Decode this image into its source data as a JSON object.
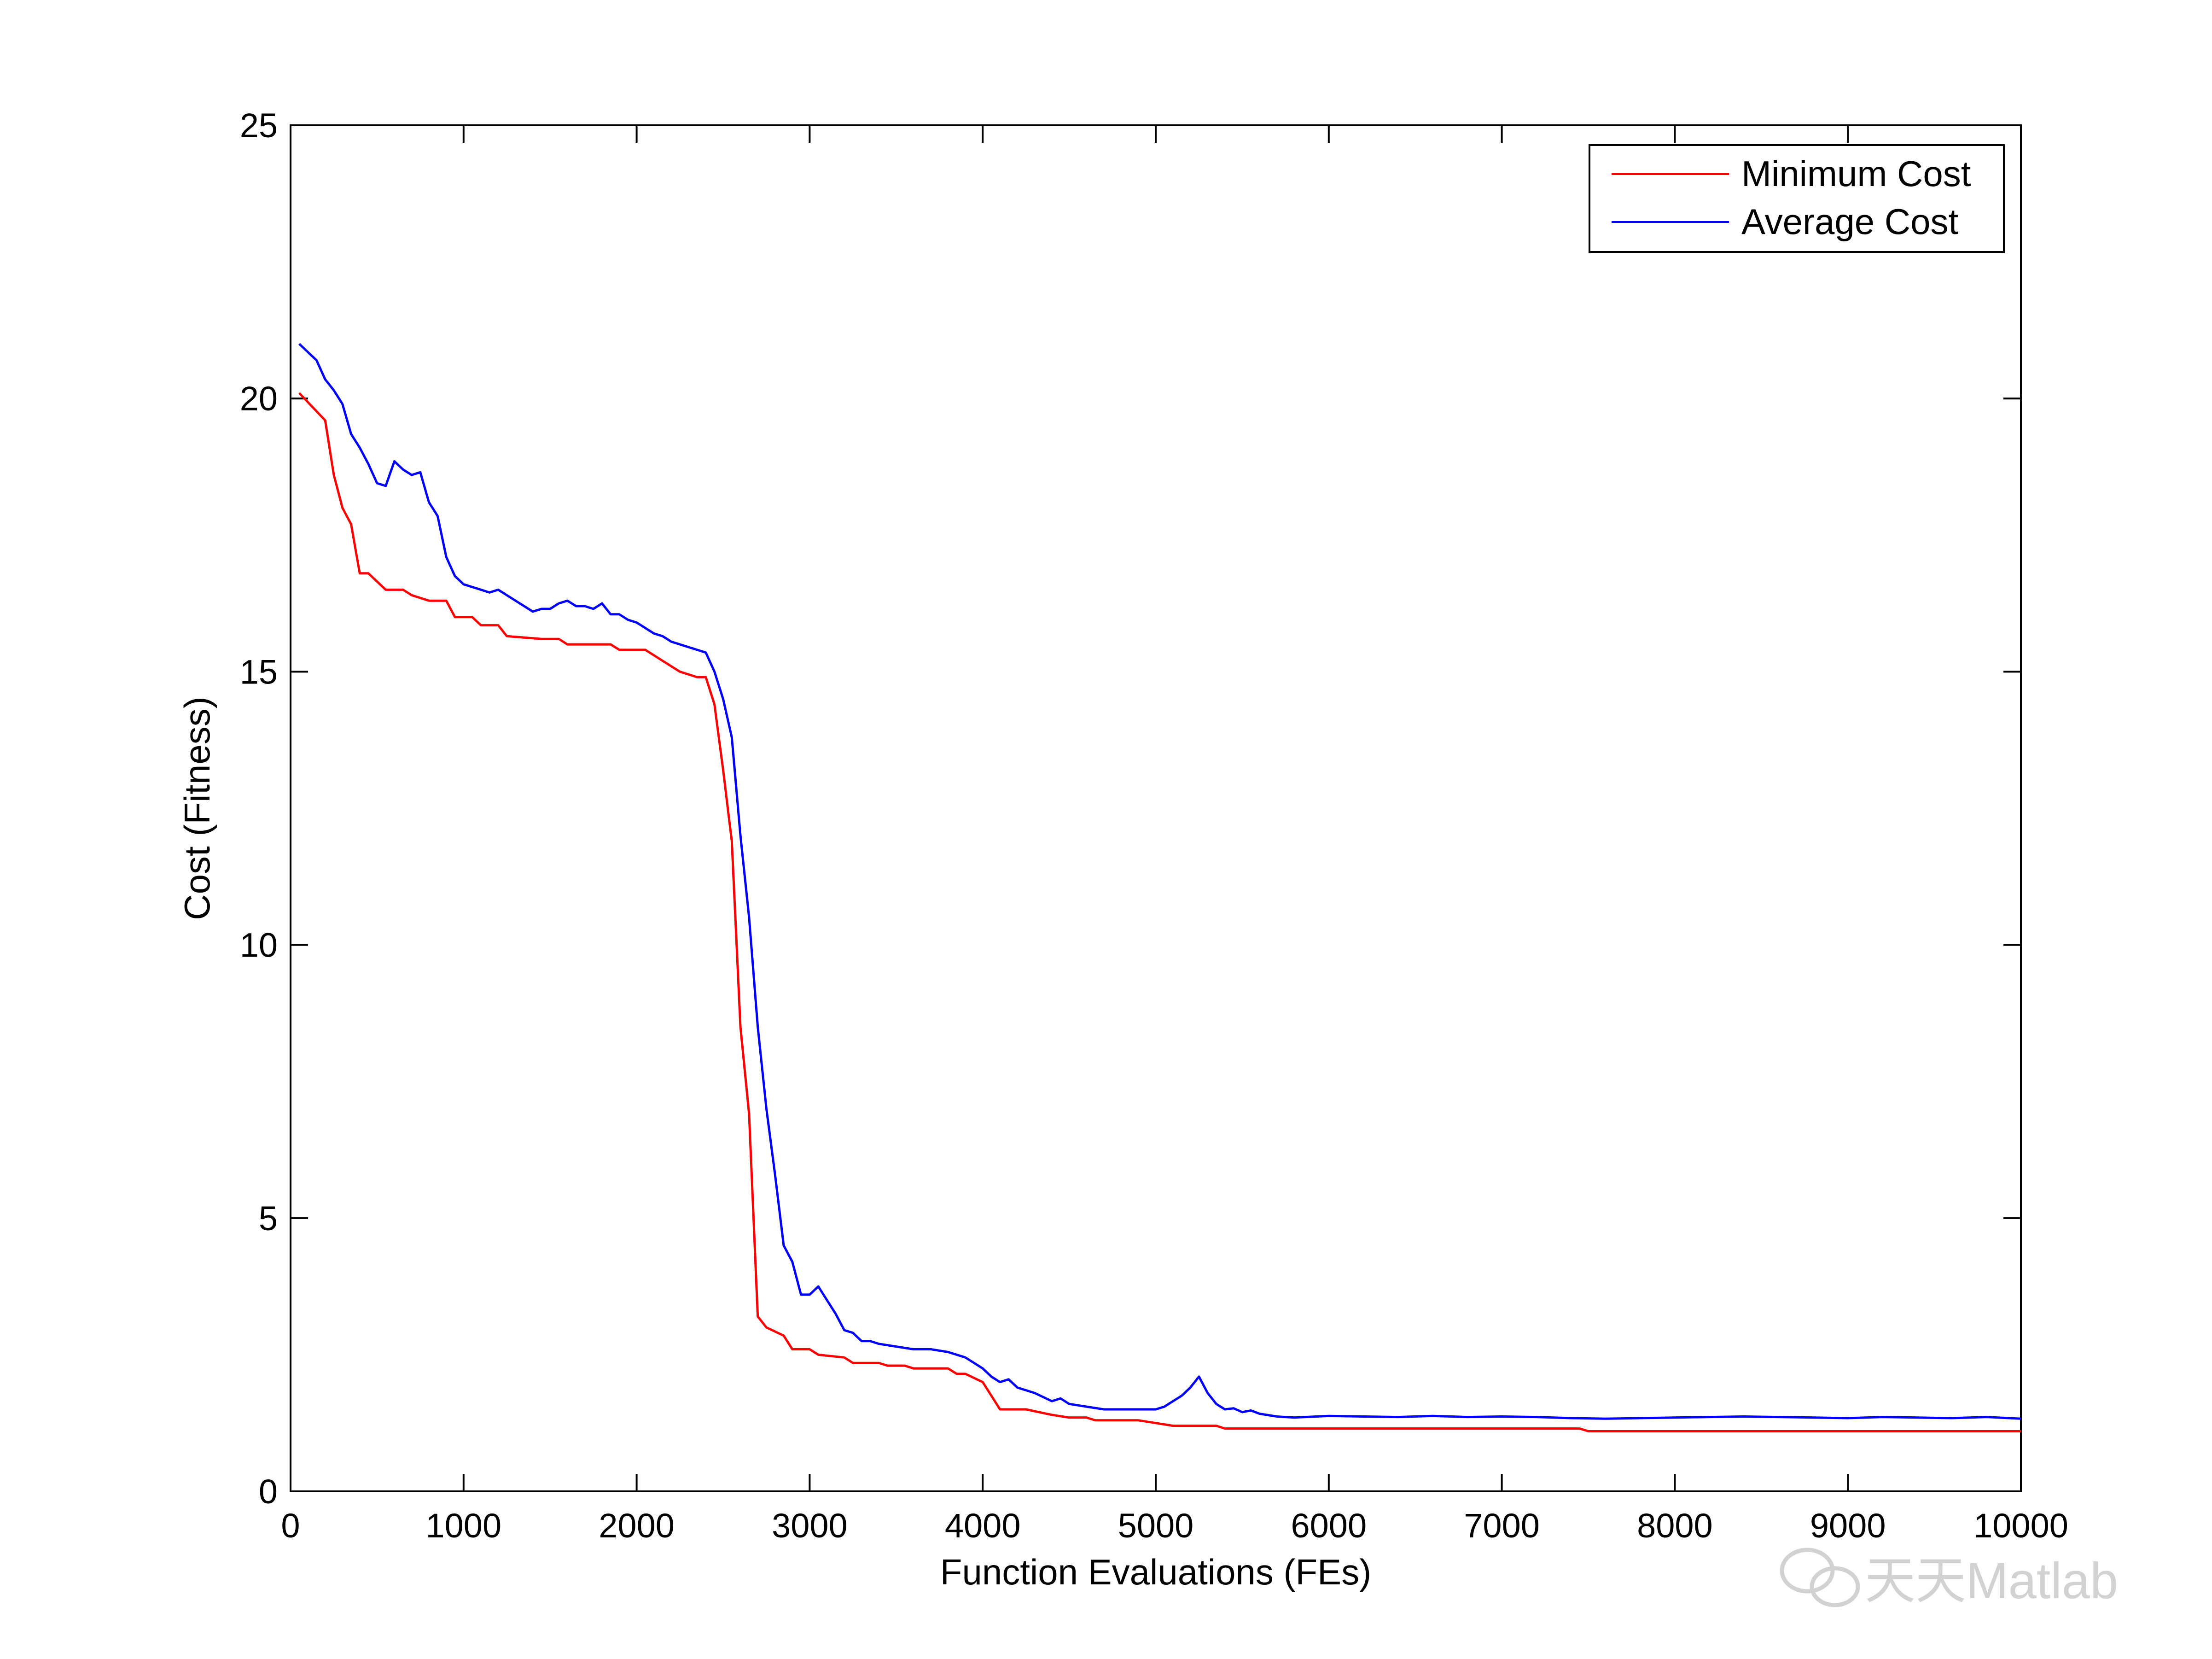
{
  "chart_data": {
    "type": "line",
    "title": "",
    "xlabel": "Function Evaluations (FEs)",
    "ylabel": "Cost (Fitness)",
    "xlim": [
      0,
      10000
    ],
    "ylim": [
      0,
      25
    ],
    "xticks": [
      0,
      1000,
      2000,
      3000,
      4000,
      5000,
      6000,
      7000,
      8000,
      9000,
      10000
    ],
    "yticks": [
      0,
      5,
      10,
      15,
      20,
      25
    ],
    "grid": false,
    "legend_position": "top-right",
    "series": [
      {
        "name": "Minimum Cost",
        "color": "#ff0000",
        "x": [
          50,
          200,
          250,
          300,
          350,
          400,
          450,
          550,
          650,
          700,
          800,
          900,
          950,
          1050,
          1100,
          1200,
          1250,
          1450,
          1550,
          1600,
          1850,
          1900,
          2050,
          2150,
          2250,
          2300,
          2350,
          2400,
          2450,
          2500,
          2550,
          2600,
          2650,
          2700,
          2750,
          2850,
          2900,
          3000,
          3050,
          3200,
          3250,
          3400,
          3450,
          3550,
          3600,
          3800,
          3850,
          3900,
          4000,
          4100,
          4250,
          4400,
          4500,
          4600,
          4650,
          4900,
          5000,
          5100,
          5350,
          5400,
          7450,
          7500,
          10000
        ],
        "y": [
          20.1,
          19.6,
          18.6,
          18.0,
          17.7,
          16.8,
          16.8,
          16.5,
          16.5,
          16.4,
          16.3,
          16.3,
          16.0,
          16.0,
          15.85,
          15.85,
          15.65,
          15.6,
          15.6,
          15.5,
          15.5,
          15.4,
          15.4,
          15.2,
          15.0,
          14.95,
          14.9,
          14.9,
          14.4,
          13.2,
          11.9,
          8.5,
          6.9,
          3.2,
          3.0,
          2.85,
          2.6,
          2.6,
          2.5,
          2.45,
          2.35,
          2.35,
          2.3,
          2.3,
          2.25,
          2.25,
          2.15,
          2.15,
          2.0,
          1.5,
          1.5,
          1.4,
          1.35,
          1.35,
          1.3,
          1.3,
          1.25,
          1.2,
          1.2,
          1.15,
          1.15,
          1.1,
          1.1
        ]
      },
      {
        "name": "Average Cost",
        "color": "#0000ff",
        "x": [
          50,
          100,
          150,
          200,
          250,
          300,
          350,
          400,
          450,
          500,
          550,
          600,
          650,
          700,
          750,
          800,
          850,
          900,
          950,
          1000,
          1050,
          1100,
          1150,
          1200,
          1250,
          1300,
          1350,
          1400,
          1450,
          1500,
          1550,
          1600,
          1650,
          1700,
          1750,
          1800,
          1850,
          1900,
          1950,
          2000,
          2050,
          2100,
          2150,
          2200,
          2250,
          2300,
          2350,
          2400,
          2450,
          2500,
          2550,
          2600,
          2650,
          2700,
          2750,
          2800,
          2850,
          2900,
          2950,
          3000,
          3050,
          3100,
          3150,
          3200,
          3250,
          3300,
          3350,
          3400,
          3500,
          3600,
          3700,
          3800,
          3900,
          3950,
          4000,
          4050,
          4100,
          4150,
          4200,
          4300,
          4400,
          4450,
          4500,
          4600,
          4700,
          4800,
          4900,
          5000,
          5050,
          5100,
          5150,
          5200,
          5250,
          5300,
          5350,
          5400,
          5450,
          5500,
          5550,
          5600,
          5700,
          5800,
          6000,
          6200,
          6400,
          6600,
          6800,
          7000,
          7200,
          7400,
          7600,
          7800,
          8000,
          8200,
          8400,
          8600,
          8800,
          9000,
          9200,
          9400,
          9600,
          9800,
          10000
        ],
        "y": [
          21.0,
          20.85,
          20.7,
          20.35,
          20.15,
          19.9,
          19.35,
          19.1,
          18.8,
          18.45,
          18.4,
          18.85,
          18.7,
          18.6,
          18.65,
          18.1,
          17.85,
          17.1,
          16.75,
          16.6,
          16.55,
          16.5,
          16.45,
          16.5,
          16.4,
          16.3,
          16.2,
          16.1,
          16.15,
          16.15,
          16.25,
          16.3,
          16.2,
          16.2,
          16.15,
          16.25,
          16.05,
          16.05,
          15.95,
          15.9,
          15.8,
          15.7,
          15.65,
          15.55,
          15.5,
          15.45,
          15.4,
          15.35,
          15.0,
          14.5,
          13.8,
          12.0,
          10.5,
          8.5,
          7.0,
          5.8,
          4.5,
          4.2,
          3.6,
          3.6,
          3.75,
          3.5,
          3.25,
          2.95,
          2.9,
          2.75,
          2.75,
          2.7,
          2.65,
          2.6,
          2.6,
          2.55,
          2.45,
          2.35,
          2.25,
          2.1,
          2.0,
          2.05,
          1.9,
          1.8,
          1.65,
          1.7,
          1.6,
          1.55,
          1.5,
          1.5,
          1.5,
          1.5,
          1.55,
          1.65,
          1.75,
          1.9,
          2.1,
          1.8,
          1.6,
          1.5,
          1.52,
          1.45,
          1.48,
          1.42,
          1.37,
          1.35,
          1.38,
          1.37,
          1.36,
          1.38,
          1.36,
          1.37,
          1.36,
          1.34,
          1.33,
          1.34,
          1.35,
          1.36,
          1.37,
          1.36,
          1.35,
          1.34,
          1.36,
          1.35,
          1.34,
          1.36,
          1.33
        ]
      }
    ]
  },
  "watermark": {
    "text": "天天Matlab",
    "icon": "wechat-icon"
  }
}
